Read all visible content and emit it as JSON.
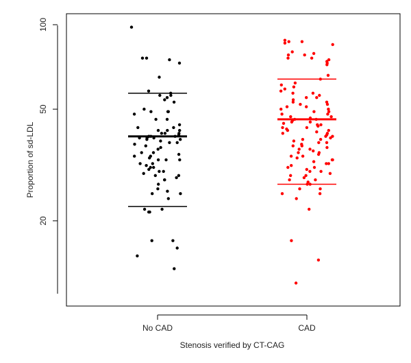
{
  "chart_data": {
    "type": "scatter",
    "subtype": "strip-plot",
    "title": "",
    "xlabel": "Stenosis verified by CT-CAG",
    "ylabel": "Proportion of sd-LDL",
    "y_scale": "log",
    "ylim": [
      11,
      100
    ],
    "y_ticks": [
      100,
      50,
      20
    ],
    "categories": [
      "No CAD",
      "CAD"
    ],
    "grid": false,
    "legend": "none",
    "colors": {
      "No CAD": "#000000",
      "CAD": "#ff0000"
    },
    "series": [
      {
        "category": "No CAD",
        "summary": {
          "median": 40,
          "upper": 57,
          "lower": 22.5
        },
        "values": [
          98,
          73,
          76,
          76,
          75,
          65,
          58,
          57,
          56,
          56,
          55,
          54,
          53,
          50,
          49,
          49,
          49,
          48,
          46,
          46,
          44,
          43,
          43,
          42,
          42,
          42,
          41,
          41,
          41,
          40.5,
          40,
          40,
          40,
          40,
          39.5,
          39.5,
          39.5,
          39,
          39,
          38.5,
          38,
          38,
          37.5,
          37,
          36.5,
          36,
          35,
          35,
          34.5,
          34,
          34,
          33.5,
          33,
          33,
          33,
          32,
          32,
          31.5,
          31,
          31,
          30.5,
          30,
          30,
          29.5,
          29,
          29,
          28.5,
          28,
          28,
          27,
          26,
          25.5,
          25,
          25,
          24,
          22,
          22,
          21.5,
          21.5,
          17,
          17,
          16,
          15,
          13.5
        ]
      },
      {
        "category": "CAD",
        "summary": {
          "median": 46,
          "upper": 64,
          "lower": 27
        },
        "values": [
          88,
          87,
          87,
          86,
          85,
          80,
          79,
          78,
          78,
          76,
          76,
          75,
          74,
          73,
          72,
          66,
          64,
          62,
          61,
          60,
          59,
          58,
          57,
          57,
          56,
          55,
          55,
          54,
          53,
          53,
          52,
          52,
          51,
          51,
          50,
          50,
          49,
          49,
          48,
          48,
          47,
          47,
          46.5,
          46,
          46,
          45.5,
          45,
          45,
          44.5,
          44,
          44,
          43.5,
          43,
          43,
          42.5,
          42,
          42,
          41.5,
          41,
          41,
          40.5,
          40,
          40,
          39.5,
          39,
          39,
          38.5,
          38,
          38,
          37.5,
          37,
          37,
          36.5,
          36,
          36,
          35.5,
          35,
          35,
          34.5,
          34,
          34,
          33.5,
          33,
          33,
          32.5,
          32,
          32,
          31.5,
          31,
          31,
          30.5,
          30,
          30,
          29.5,
          29,
          29,
          28.5,
          28,
          28,
          27.5,
          27,
          27,
          26,
          26,
          25,
          25,
          24,
          22,
          17,
          14.5,
          12
        ]
      }
    ]
  }
}
